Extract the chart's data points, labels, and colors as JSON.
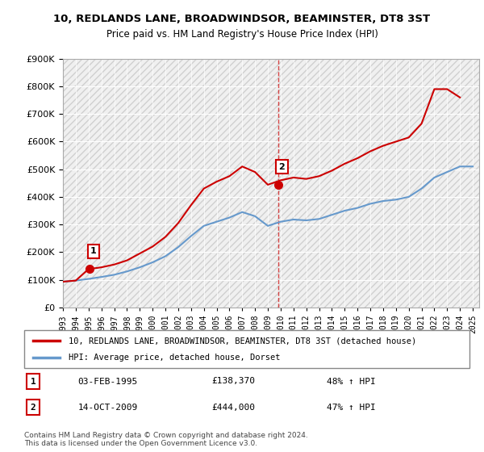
{
  "title": "10, REDLANDS LANE, BROADWINDSOR, BEAMINSTER, DT8 3ST",
  "subtitle": "Price paid vs. HM Land Registry's House Price Index (HPI)",
  "legend_line1": "10, REDLANDS LANE, BROADWINDSOR, BEAMINSTER, DT8 3ST (detached house)",
  "legend_line2": "HPI: Average price, detached house, Dorset",
  "sale1_label": "1",
  "sale1_date": "03-FEB-1995",
  "sale1_price": "£138,370",
  "sale1_hpi": "48% ↑ HPI",
  "sale2_label": "2",
  "sale2_date": "14-OCT-2009",
  "sale2_price": "£444,000",
  "sale2_hpi": "47% ↑ HPI",
  "footnote": "Contains HM Land Registry data © Crown copyright and database right 2024.\nThis data is licensed under the Open Government Licence v3.0.",
  "red_color": "#cc0000",
  "blue_color": "#6699cc",
  "bg_hatch_color": "#e8e8e8",
  "ylim": [
    0,
    900000
  ],
  "xlim_start": 1993.0,
  "xlim_end": 2025.5,
  "sale1_x": 1995.09,
  "sale1_y": 138370,
  "sale2_x": 2009.79,
  "sale2_y": 444000,
  "hpi_x": [
    1993,
    1994,
    1995,
    1996,
    1997,
    1998,
    1999,
    2000,
    2001,
    2002,
    2003,
    2004,
    2005,
    2006,
    2007,
    2008,
    2009,
    2010,
    2011,
    2012,
    2013,
    2014,
    2015,
    2016,
    2017,
    2018,
    2019,
    2020,
    2021,
    2022,
    2023,
    2024,
    2025
  ],
  "hpi_y": [
    93000,
    97000,
    103000,
    110000,
    118000,
    130000,
    145000,
    163000,
    185000,
    218000,
    258000,
    295000,
    310000,
    325000,
    345000,
    330000,
    295000,
    310000,
    318000,
    315000,
    320000,
    335000,
    350000,
    360000,
    375000,
    385000,
    390000,
    400000,
    430000,
    470000,
    490000,
    510000,
    510000
  ],
  "price_x": [
    1993,
    1994,
    1995,
    1996,
    1997,
    1998,
    1999,
    2000,
    2001,
    2002,
    2003,
    2004,
    2005,
    2006,
    2007,
    2008,
    2009,
    2010,
    2011,
    2012,
    2013,
    2014,
    2015,
    2016,
    2017,
    2018,
    2019,
    2020,
    2021,
    2022,
    2023,
    2024
  ],
  "price_y": [
    93000,
    97000,
    138370,
    145000,
    155000,
    170000,
    195000,
    220000,
    255000,
    305000,
    370000,
    430000,
    455000,
    475000,
    510000,
    490000,
    444000,
    460000,
    470000,
    465000,
    475000,
    495000,
    520000,
    540000,
    565000,
    585000,
    600000,
    615000,
    665000,
    790000,
    790000,
    760000
  ]
}
